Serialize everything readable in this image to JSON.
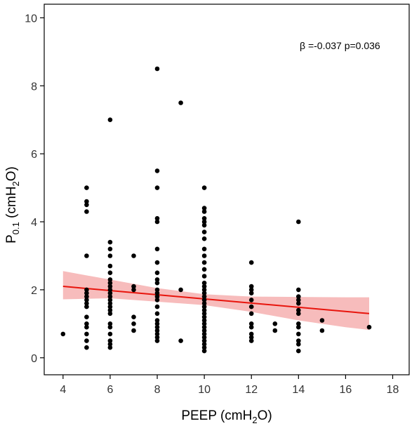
{
  "chart_data": {
    "type": "scatter",
    "xlabel": "PEEP (cmH2O)",
    "ylabel_main": "P",
    "ylabel_sub": "0.1",
    "ylabel_rest": " (cmH",
    "ylabel_sub2": "2",
    "ylabel_end": "O)",
    "xlabel_main": "PEEP (cmH",
    "xlabel_sub": "2",
    "xlabel_end": "O)",
    "annotation": "β =-0.037 p=0.036",
    "xlim": [
      3.2,
      18.7
    ],
    "ylim": [
      -0.5,
      10.4
    ],
    "x_ticks": [
      4,
      6,
      8,
      10,
      12,
      14,
      16,
      18
    ],
    "y_ticks": [
      0,
      2,
      4,
      6,
      8,
      10
    ],
    "grid": false,
    "fit_line": {
      "x": [
        4,
        17
      ],
      "y": [
        2.1,
        1.3
      ],
      "color": "#e8140c",
      "band_upper": [
        [
          4,
          2.55
        ],
        [
          6,
          2.3
        ],
        [
          8,
          2.05
        ],
        [
          10,
          1.87
        ],
        [
          12,
          1.8
        ],
        [
          14,
          1.79
        ],
        [
          16,
          1.78
        ],
        [
          17,
          1.78
        ]
      ],
      "band_lower": [
        [
          4,
          1.72
        ],
        [
          6,
          1.75
        ],
        [
          8,
          1.65
        ],
        [
          10,
          1.55
        ],
        [
          12,
          1.35
        ],
        [
          14,
          1.1
        ],
        [
          16,
          0.9
        ],
        [
          17,
          0.82
        ]
      ],
      "band_color": "#f4a6a6"
    },
    "points_color": "#000000",
    "points": [
      {
        "x": 4,
        "y": 0.7
      },
      {
        "x": 5,
        "y": 5.0
      },
      {
        "x": 5,
        "y": 4.6
      },
      {
        "x": 5,
        "y": 4.5
      },
      {
        "x": 5,
        "y": 4.3
      },
      {
        "x": 5,
        "y": 3.0
      },
      {
        "x": 5,
        "y": 2.0
      },
      {
        "x": 5,
        "y": 1.9
      },
      {
        "x": 5,
        "y": 1.8
      },
      {
        "x": 5,
        "y": 1.7
      },
      {
        "x": 5,
        "y": 1.6
      },
      {
        "x": 5,
        "y": 1.5
      },
      {
        "x": 5,
        "y": 1.2
      },
      {
        "x": 5,
        "y": 1.0
      },
      {
        "x": 5,
        "y": 0.9
      },
      {
        "x": 5,
        "y": 0.7
      },
      {
        "x": 5,
        "y": 0.5
      },
      {
        "x": 5,
        "y": 0.3
      },
      {
        "x": 6,
        "y": 7.0
      },
      {
        "x": 6,
        "y": 3.4
      },
      {
        "x": 6,
        "y": 3.2
      },
      {
        "x": 6,
        "y": 3.0
      },
      {
        "x": 6,
        "y": 2.7
      },
      {
        "x": 6,
        "y": 2.5
      },
      {
        "x": 6,
        "y": 2.3
      },
      {
        "x": 6,
        "y": 2.2
      },
      {
        "x": 6,
        "y": 2.1
      },
      {
        "x": 6,
        "y": 2.0
      },
      {
        "x": 6,
        "y": 1.9
      },
      {
        "x": 6,
        "y": 1.8
      },
      {
        "x": 6,
        "y": 1.7
      },
      {
        "x": 6,
        "y": 1.6
      },
      {
        "x": 6,
        "y": 1.5
      },
      {
        "x": 6,
        "y": 1.4
      },
      {
        "x": 6,
        "y": 1.3
      },
      {
        "x": 6,
        "y": 1.0
      },
      {
        "x": 6,
        "y": 0.9
      },
      {
        "x": 6,
        "y": 0.7
      },
      {
        "x": 6,
        "y": 0.5
      },
      {
        "x": 6,
        "y": 0.4
      },
      {
        "x": 6,
        "y": 0.3
      },
      {
        "x": 7,
        "y": 3.0
      },
      {
        "x": 7,
        "y": 2.1
      },
      {
        "x": 7,
        "y": 2.0
      },
      {
        "x": 7,
        "y": 1.2
      },
      {
        "x": 7,
        "y": 1.0
      },
      {
        "x": 7,
        "y": 0.8
      },
      {
        "x": 8,
        "y": 8.5
      },
      {
        "x": 8,
        "y": 5.5
      },
      {
        "x": 8,
        "y": 5.0
      },
      {
        "x": 8,
        "y": 4.1
      },
      {
        "x": 8,
        "y": 4.0
      },
      {
        "x": 8,
        "y": 3.2
      },
      {
        "x": 8,
        "y": 2.8
      },
      {
        "x": 8,
        "y": 2.5
      },
      {
        "x": 8,
        "y": 2.3
      },
      {
        "x": 8,
        "y": 2.2
      },
      {
        "x": 8,
        "y": 2.0
      },
      {
        "x": 8,
        "y": 1.9
      },
      {
        "x": 8,
        "y": 1.8
      },
      {
        "x": 8,
        "y": 1.7
      },
      {
        "x": 8,
        "y": 1.5
      },
      {
        "x": 8,
        "y": 1.3
      },
      {
        "x": 8,
        "y": 1.1
      },
      {
        "x": 8,
        "y": 1.0
      },
      {
        "x": 8,
        "y": 0.9
      },
      {
        "x": 8,
        "y": 0.8
      },
      {
        "x": 8,
        "y": 0.7
      },
      {
        "x": 8,
        "y": 0.6
      },
      {
        "x": 8,
        "y": 0.5
      },
      {
        "x": 9,
        "y": 7.5
      },
      {
        "x": 9,
        "y": 2.0
      },
      {
        "x": 9,
        "y": 0.5
      },
      {
        "x": 10,
        "y": 5.0
      },
      {
        "x": 10,
        "y": 4.4
      },
      {
        "x": 10,
        "y": 4.3
      },
      {
        "x": 10,
        "y": 4.1
      },
      {
        "x": 10,
        "y": 4.0
      },
      {
        "x": 10,
        "y": 3.9
      },
      {
        "x": 10,
        "y": 3.7
      },
      {
        "x": 10,
        "y": 3.5
      },
      {
        "x": 10,
        "y": 3.2
      },
      {
        "x": 10,
        "y": 3.0
      },
      {
        "x": 10,
        "y": 2.8
      },
      {
        "x": 10,
        "y": 2.6
      },
      {
        "x": 10,
        "y": 2.4
      },
      {
        "x": 10,
        "y": 2.2
      },
      {
        "x": 10,
        "y": 2.1
      },
      {
        "x": 10,
        "y": 2.0
      },
      {
        "x": 10,
        "y": 1.9
      },
      {
        "x": 10,
        "y": 1.8
      },
      {
        "x": 10,
        "y": 1.7
      },
      {
        "x": 10,
        "y": 1.6
      },
      {
        "x": 10,
        "y": 1.5
      },
      {
        "x": 10,
        "y": 1.4
      },
      {
        "x": 10,
        "y": 1.3
      },
      {
        "x": 10,
        "y": 1.2
      },
      {
        "x": 10,
        "y": 1.1
      },
      {
        "x": 10,
        "y": 1.0
      },
      {
        "x": 10,
        "y": 0.9
      },
      {
        "x": 10,
        "y": 0.8
      },
      {
        "x": 10,
        "y": 0.7
      },
      {
        "x": 10,
        "y": 0.6
      },
      {
        "x": 10,
        "y": 0.5
      },
      {
        "x": 10,
        "y": 0.4
      },
      {
        "x": 10,
        "y": 0.3
      },
      {
        "x": 10,
        "y": 0.2
      },
      {
        "x": 12,
        "y": 2.8
      },
      {
        "x": 12,
        "y": 2.1
      },
      {
        "x": 12,
        "y": 2.0
      },
      {
        "x": 12,
        "y": 1.9
      },
      {
        "x": 12,
        "y": 1.7
      },
      {
        "x": 12,
        "y": 1.5
      },
      {
        "x": 12,
        "y": 1.3
      },
      {
        "x": 12,
        "y": 1.0
      },
      {
        "x": 12,
        "y": 0.9
      },
      {
        "x": 12,
        "y": 0.7
      },
      {
        "x": 12,
        "y": 0.6
      },
      {
        "x": 12,
        "y": 0.5
      },
      {
        "x": 13,
        "y": 1.0
      },
      {
        "x": 13,
        "y": 0.8
      },
      {
        "x": 14,
        "y": 4.0
      },
      {
        "x": 14,
        "y": 2.0
      },
      {
        "x": 14,
        "y": 1.8
      },
      {
        "x": 14,
        "y": 1.7
      },
      {
        "x": 14,
        "y": 1.6
      },
      {
        "x": 14,
        "y": 1.4
      },
      {
        "x": 14,
        "y": 1.3
      },
      {
        "x": 14,
        "y": 1.0
      },
      {
        "x": 14,
        "y": 0.9
      },
      {
        "x": 14,
        "y": 0.7
      },
      {
        "x": 14,
        "y": 0.5
      },
      {
        "x": 14,
        "y": 0.4
      },
      {
        "x": 14,
        "y": 0.2
      },
      {
        "x": 15,
        "y": 1.1
      },
      {
        "x": 15,
        "y": 0.8
      },
      {
        "x": 17,
        "y": 0.9
      }
    ]
  }
}
